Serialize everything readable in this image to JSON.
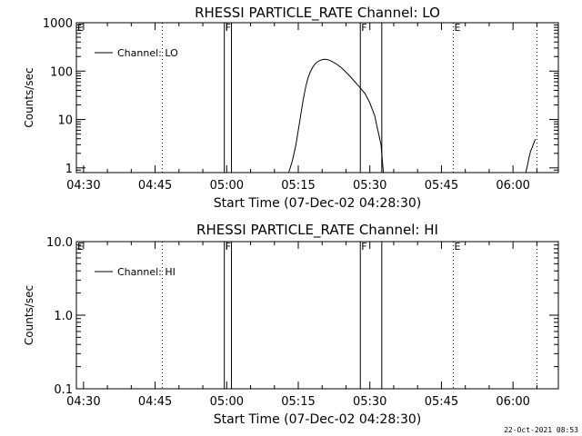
{
  "footer_timestamp": "22-Oct-2021 08:53",
  "colors": {
    "background": "#ffffff",
    "ink": "#000000"
  },
  "chart_data": [
    {
      "type": "line",
      "title": "RHESSI PARTICLE_RATE Channel: LO",
      "xlabel": "Start Time (07-Dec-02 04:28:30)",
      "ylabel": "Counts/sec",
      "xlim": [
        "04:28:30",
        "06:09:30"
      ],
      "ylim": [
        0.8,
        1000
      ],
      "yscale": "log",
      "x_ticks": [
        "04:30",
        "04:45",
        "05:00",
        "05:15",
        "05:30",
        "05:45",
        "06:00"
      ],
      "y_ticks": [
        "1",
        "10",
        "100",
        "1000"
      ],
      "grid": false,
      "legend": {
        "position": "top-left",
        "entries": [
          "Channel: LO"
        ]
      },
      "series": [
        {
          "name": "Channel: LO",
          "x": [
            "05:13:00",
            "05:13:45",
            "05:14:30",
            "05:15:00",
            "05:15:30",
            "05:16:00",
            "05:16:30",
            "05:17:00",
            "05:17:30",
            "05:18:00",
            "05:18:30",
            "05:19:00",
            "05:19:30",
            "05:20:00",
            "05:20:30",
            "05:21:00",
            "05:21:30",
            "05:22:00",
            "05:23:00",
            "05:24:00",
            "05:25:00",
            "05:26:00",
            "05:27:00",
            "05:28:00",
            "05:29:00",
            "05:30:00",
            "05:31:00",
            "05:31:40",
            "05:32:20",
            "05:32:50"
          ],
          "y": [
            0.8,
            1.4,
            3,
            6,
            12,
            25,
            45,
            70,
            95,
            120,
            140,
            155,
            165,
            172,
            175,
            174,
            168,
            160,
            140,
            118,
            95,
            75,
            58,
            45,
            34,
            22,
            12,
            6,
            3,
            0.8
          ]
        },
        {
          "name": "",
          "x": [
            "06:02:40",
            "06:03:00",
            "06:03:20",
            "06:03:40",
            "06:04:00",
            "06:04:20",
            "06:04:40"
          ],
          "y": [
            0.8,
            1.1,
            1.6,
            2.2,
            2.6,
            3.2,
            3.9
          ]
        }
      ],
      "markers": [
        {
          "label": "E",
          "time": "04:28:30",
          "style": "dotted"
        },
        {
          "label": "",
          "time": "04:46:30",
          "style": "dotted"
        },
        {
          "label": "F",
          "time": "04:59:30",
          "style": "solid"
        },
        {
          "label": "",
          "time": "05:01:00",
          "style": "solid"
        },
        {
          "label": "F",
          "time": "05:28:00",
          "style": "solid"
        },
        {
          "label": "",
          "time": "05:32:30",
          "style": "solid"
        },
        {
          "label": "E",
          "time": "05:47:30",
          "style": "dotted"
        },
        {
          "label": "",
          "time": "06:05:00",
          "style": "dotted"
        }
      ]
    },
    {
      "type": "line",
      "title": "RHESSI PARTICLE_RATE Channel: HI",
      "xlabel": "Start Time (07-Dec-02 04:28:30)",
      "ylabel": "Counts/sec",
      "xlim": [
        "04:28:30",
        "06:09:30"
      ],
      "ylim": [
        0.1,
        10
      ],
      "yscale": "log",
      "x_ticks": [
        "04:30",
        "04:45",
        "05:00",
        "05:15",
        "05:30",
        "05:45",
        "06:00"
      ],
      "y_ticks": [
        "0.1",
        "1.0",
        "10.0"
      ],
      "grid": false,
      "legend": {
        "position": "top-left",
        "entries": [
          "Channel: HI"
        ]
      },
      "series": [
        {
          "name": "Channel: HI",
          "x": [],
          "y": []
        }
      ],
      "markers": [
        {
          "label": "E",
          "time": "04:28:30",
          "style": "dotted"
        },
        {
          "label": "",
          "time": "04:46:30",
          "style": "dotted"
        },
        {
          "label": "F",
          "time": "04:59:30",
          "style": "solid"
        },
        {
          "label": "",
          "time": "05:01:00",
          "style": "solid"
        },
        {
          "label": "F",
          "time": "05:28:00",
          "style": "solid"
        },
        {
          "label": "",
          "time": "05:32:30",
          "style": "solid"
        },
        {
          "label": "E",
          "time": "05:47:30",
          "style": "dotted"
        },
        {
          "label": "",
          "time": "06:05:00",
          "style": "dotted"
        }
      ]
    }
  ]
}
